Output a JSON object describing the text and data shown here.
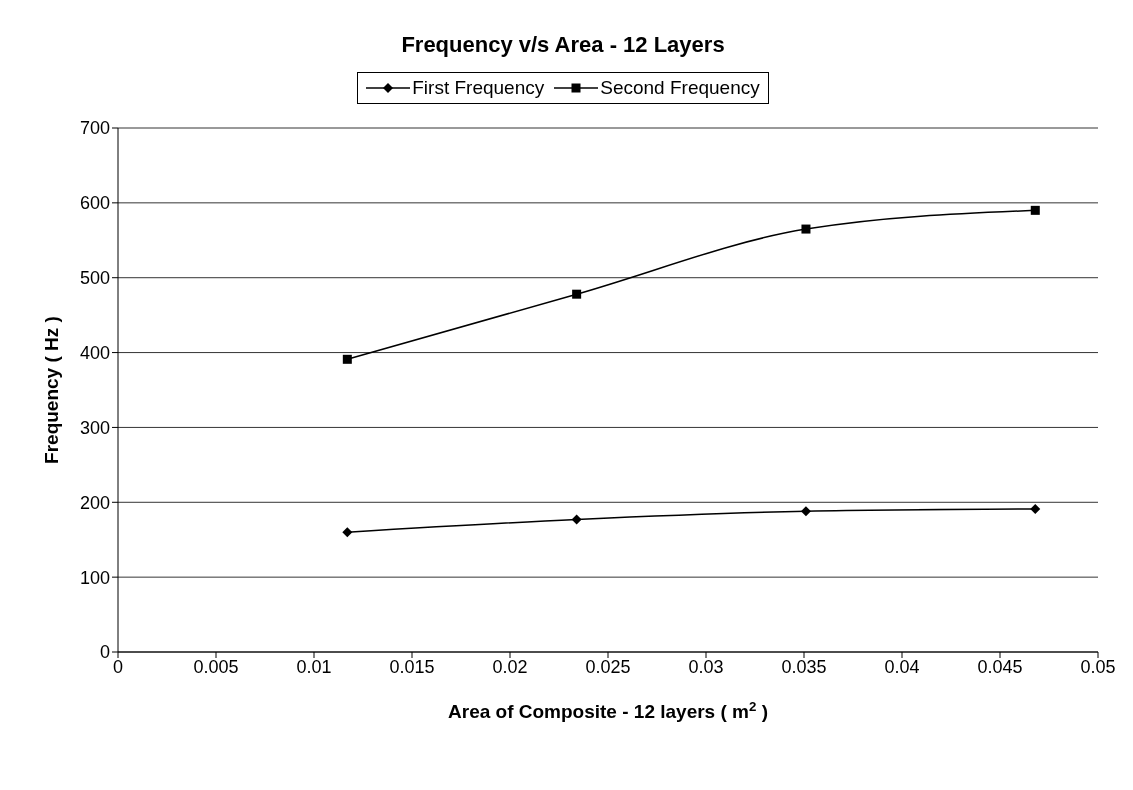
{
  "chart_data": {
    "type": "line",
    "title": "Frequency v/s Area - 12 Layers",
    "xlabel": "Area of Composite - 12 layers ( m$^{2}$ )",
    "ylabel": "Frequency ( Hz )",
    "x": [
      0.0117,
      0.0234,
      0.0351,
      0.0468
    ],
    "series": [
      {
        "name": "First Frequency",
        "color": "#000000",
        "marker": "diamond",
        "values": [
          160,
          177,
          188,
          191
        ]
      },
      {
        "name": "Second Frequency",
        "color": "#000000",
        "marker": "square",
        "values": [
          391,
          478,
          565,
          590
        ]
      }
    ],
    "xlim": [
      0,
      0.05
    ],
    "xticks": [
      0,
      0.005,
      0.01,
      0.015,
      0.02,
      0.025,
      0.03,
      0.035,
      0.04,
      0.045,
      0.05
    ],
    "ylim": [
      0,
      700
    ],
    "yticks": [
      0,
      100,
      200,
      300,
      400,
      500,
      600,
      700
    ],
    "grid": "y",
    "legend": "top",
    "line_style": "solid"
  }
}
